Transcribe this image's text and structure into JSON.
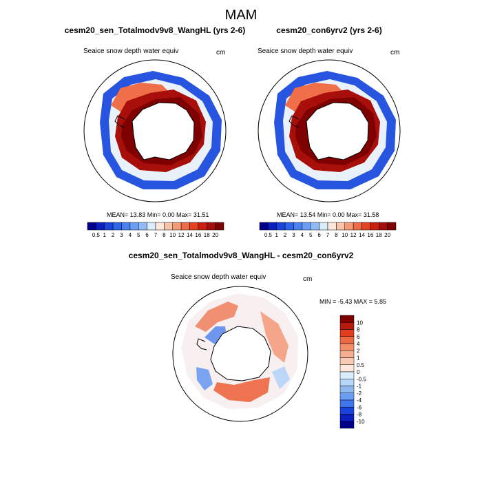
{
  "figure": {
    "main_title": "MAM",
    "diff_title": "cesm20_sen_Totalmodv9v8_WangHL - cesm20_con6yrv2",
    "diff_stats": "MIN =  -5.43 MAX =   5.85"
  },
  "panels": [
    {
      "title": "cesm20_sen_Totalmodv9v8_WangHL (yrs 2-6)",
      "variable": "Seaice snow depth water equiv",
      "units": "cm",
      "stats": "MEAN=  13.83  Min=   0.00  Max=  31.51"
    },
    {
      "title": "cesm20_con6yrv2 (yrs 2-6)",
      "variable": "Seaice snow depth water equiv",
      "units": "cm",
      "stats": "MEAN=  13.54  Min=   0.00  Max=  31.58"
    },
    {
      "title": "",
      "variable": "Seaice snow depth water equiv",
      "units": "cm",
      "stats": ""
    }
  ],
  "colorbars": {
    "absolute": {
      "labels": [
        "0.5",
        "1",
        "2",
        "3",
        "4",
        "5",
        "6",
        "7",
        "8",
        "10",
        "12",
        "14",
        "16",
        "18",
        "20"
      ],
      "colors": [
        "#00008b",
        "#0a1fbd",
        "#1a44d9",
        "#2f66e8",
        "#4a82f0",
        "#6a9ef5",
        "#8fbaf7",
        "#d8ecfb",
        "#fde7dc",
        "#f8c3a9",
        "#f49a76",
        "#ee6c45",
        "#e3431f",
        "#c82110",
        "#a30e0a",
        "#7e0000"
      ]
    },
    "difference": {
      "labels": [
        "10",
        "8",
        "6",
        "4",
        "2",
        "1",
        "0.5",
        "0",
        "-0.5",
        "-1",
        "-2",
        "-4",
        "-6",
        "-8",
        "-10"
      ],
      "colors": [
        "#7e0000",
        "#b51a0d",
        "#e03e1e",
        "#ef6a43",
        "#f48e68",
        "#f6ae90",
        "#f9cbb6",
        "#fde7dc",
        "#d8ecfb",
        "#b8d6f7",
        "#92b8f2",
        "#6a9ef5",
        "#3f76eb",
        "#1a44d9",
        "#0a1fbd",
        "#00008b"
      ]
    }
  },
  "map_data": {
    "projection": "south polar stereographic",
    "region": "Southern Ocean / Antarctica",
    "field": "Seaice snow depth water equiv",
    "units": "cm",
    "panels": [
      {
        "role": "experiment",
        "mean": 13.83,
        "min": 0.0,
        "max": 31.51
      },
      {
        "role": "control",
        "mean": 13.54,
        "min": 0.0,
        "max": 31.58
      },
      {
        "role": "difference",
        "min": -5.43,
        "max": 5.85
      }
    ]
  }
}
